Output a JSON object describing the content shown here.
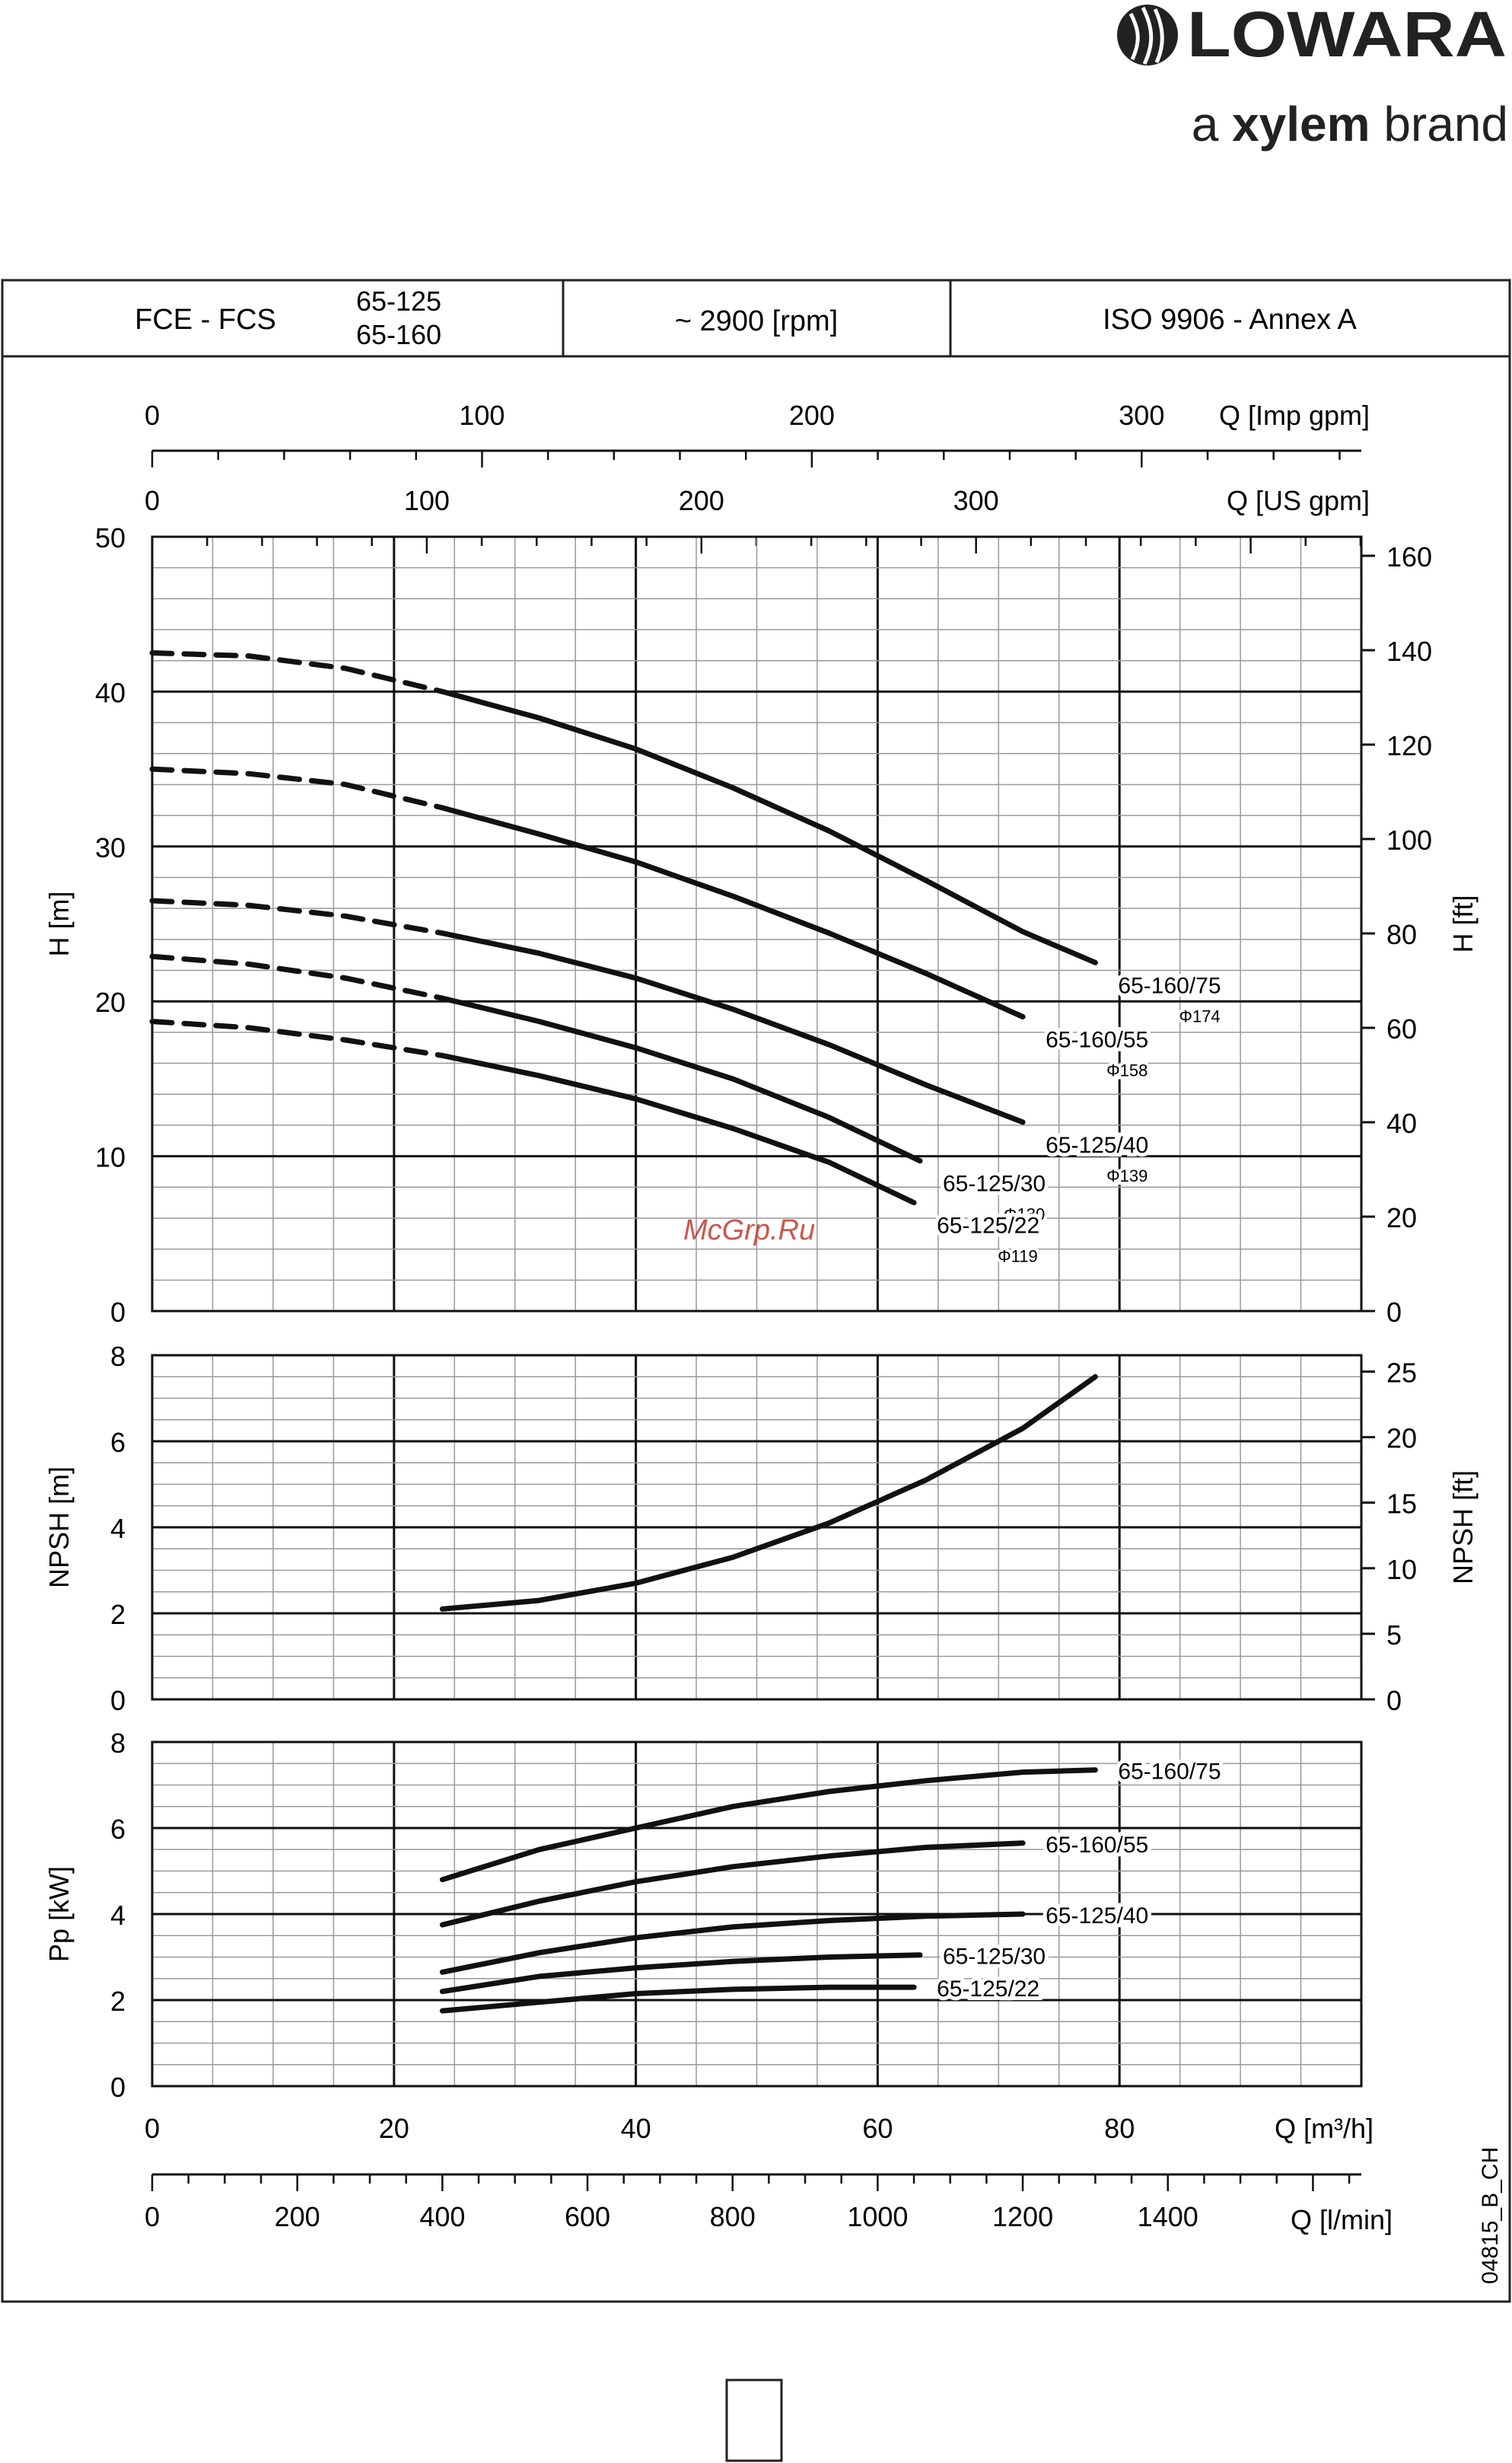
{
  "brand": {
    "name": "LOWARA",
    "tagline_prefix": "a",
    "tagline_brand": "xylem",
    "tagline_suffix": "brand"
  },
  "header": {
    "series": "FCE - FCS",
    "models": [
      "65-125",
      "65-160"
    ],
    "speed": "~ 2900 [rpm]",
    "standard": "ISO 9906 - Annex A"
  },
  "watermark": "McGrp.Ru",
  "doc_code": "04815_B_CH",
  "chart_data": [
    {
      "type": "line",
      "panel": "head",
      "ylabel": "H [m]",
      "ylabel_right": "H [ft]",
      "xlim": [
        0,
        100
      ],
      "ylim": [
        0,
        50
      ],
      "yticks": [
        0,
        10,
        20,
        30,
        40,
        50
      ],
      "yticks_right": [
        0,
        20,
        40,
        60,
        80,
        100,
        120,
        140,
        160
      ],
      "grid": true,
      "series": [
        {
          "name": "65-160/75",
          "diameter": "Φ174",
          "dashed_until": 24,
          "x": [
            0,
            8,
            16,
            24,
            32,
            40,
            48,
            56,
            64,
            72,
            78
          ],
          "y": [
            42.5,
            42.3,
            41.5,
            40.0,
            38.3,
            36.3,
            33.8,
            31.0,
            27.8,
            24.5,
            22.5
          ]
        },
        {
          "name": "65-160/55",
          "diameter": "Φ158",
          "dashed_until": 24,
          "x": [
            0,
            8,
            16,
            24,
            32,
            40,
            48,
            56,
            64,
            72
          ],
          "y": [
            35.0,
            34.7,
            34.0,
            32.5,
            30.8,
            29.0,
            26.8,
            24.4,
            21.8,
            19.0
          ]
        },
        {
          "name": "65-125/40",
          "diameter": "Φ139",
          "dashed_until": 24,
          "x": [
            0,
            8,
            16,
            24,
            32,
            40,
            48,
            56,
            64,
            72
          ],
          "y": [
            26.5,
            26.2,
            25.5,
            24.4,
            23.1,
            21.5,
            19.5,
            17.2,
            14.6,
            12.2
          ]
        },
        {
          "name": "65-125/30",
          "diameter": "Φ130",
          "dashed_until": 24,
          "x": [
            0,
            8,
            16,
            24,
            32,
            40,
            48,
            56,
            63.5
          ],
          "y": [
            22.9,
            22.4,
            21.5,
            20.2,
            18.7,
            17.0,
            15.0,
            12.5,
            9.7
          ]
        },
        {
          "name": "65-125/22",
          "diameter": "Φ119",
          "dashed_until": 24,
          "x": [
            0,
            8,
            16,
            24,
            32,
            40,
            48,
            56,
            63
          ],
          "y": [
            18.7,
            18.3,
            17.5,
            16.5,
            15.2,
            13.7,
            11.8,
            9.6,
            7.0
          ]
        }
      ]
    },
    {
      "type": "line",
      "panel": "npsh",
      "ylabel": "NPSH [m]",
      "ylabel_right": "NPSH [ft]",
      "xlim": [
        0,
        100
      ],
      "ylim": [
        0,
        8
      ],
      "yticks": [
        0,
        2,
        4,
        6,
        8
      ],
      "yticks_right": [
        0,
        5,
        10,
        15,
        20,
        25
      ],
      "grid": true,
      "series": [
        {
          "name": "",
          "x": [
            24,
            32,
            40,
            48,
            56,
            64,
            72,
            78
          ],
          "y": [
            2.1,
            2.3,
            2.7,
            3.3,
            4.1,
            5.1,
            6.3,
            7.5
          ]
        }
      ]
    },
    {
      "type": "line",
      "panel": "power",
      "ylabel": "Pp [kW]",
      "xlabel": "Q [m3/h]",
      "xlim": [
        0,
        100
      ],
      "ylim": [
        0,
        8
      ],
      "yticks": [
        0,
        2,
        4,
        6,
        8
      ],
      "xticks": [
        0,
        20,
        40,
        60,
        80
      ],
      "grid": true,
      "series": [
        {
          "name": "65-160/75",
          "x": [
            24,
            32,
            40,
            48,
            56,
            64,
            72,
            78
          ],
          "y": [
            4.8,
            5.5,
            6.0,
            6.5,
            6.85,
            7.1,
            7.3,
            7.35
          ]
        },
        {
          "name": "65-160/55",
          "x": [
            24,
            32,
            40,
            48,
            56,
            64,
            72
          ],
          "y": [
            3.75,
            4.3,
            4.75,
            5.1,
            5.35,
            5.55,
            5.65
          ]
        },
        {
          "name": "65-125/40",
          "x": [
            24,
            32,
            40,
            48,
            56,
            64,
            72
          ],
          "y": [
            2.65,
            3.1,
            3.45,
            3.7,
            3.85,
            3.95,
            4.0
          ]
        },
        {
          "name": "65-125/30",
          "x": [
            24,
            32,
            40,
            48,
            56,
            63.5
          ],
          "y": [
            2.2,
            2.55,
            2.75,
            2.9,
            3.0,
            3.05
          ]
        },
        {
          "name": "65-125/22",
          "x": [
            24,
            32,
            40,
            48,
            56,
            63
          ],
          "y": [
            1.75,
            1.95,
            2.15,
            2.25,
            2.3,
            2.3
          ]
        }
      ]
    }
  ],
  "axes": {
    "imp_gpm": {
      "label": "Q [Imp gpm]",
      "ticks": [
        0,
        100,
        200,
        300
      ]
    },
    "us_gpm": {
      "label": "Q [US gpm]",
      "ticks": [
        0,
        100,
        200,
        300
      ]
    },
    "m3h": {
      "label": "Q [m³/h]",
      "ticks": [
        0,
        20,
        40,
        60,
        80
      ]
    },
    "lmin": {
      "label": "Q [l/min]",
      "ticks": [
        0,
        200,
        400,
        600,
        800,
        1000,
        1200,
        1400
      ]
    }
  }
}
